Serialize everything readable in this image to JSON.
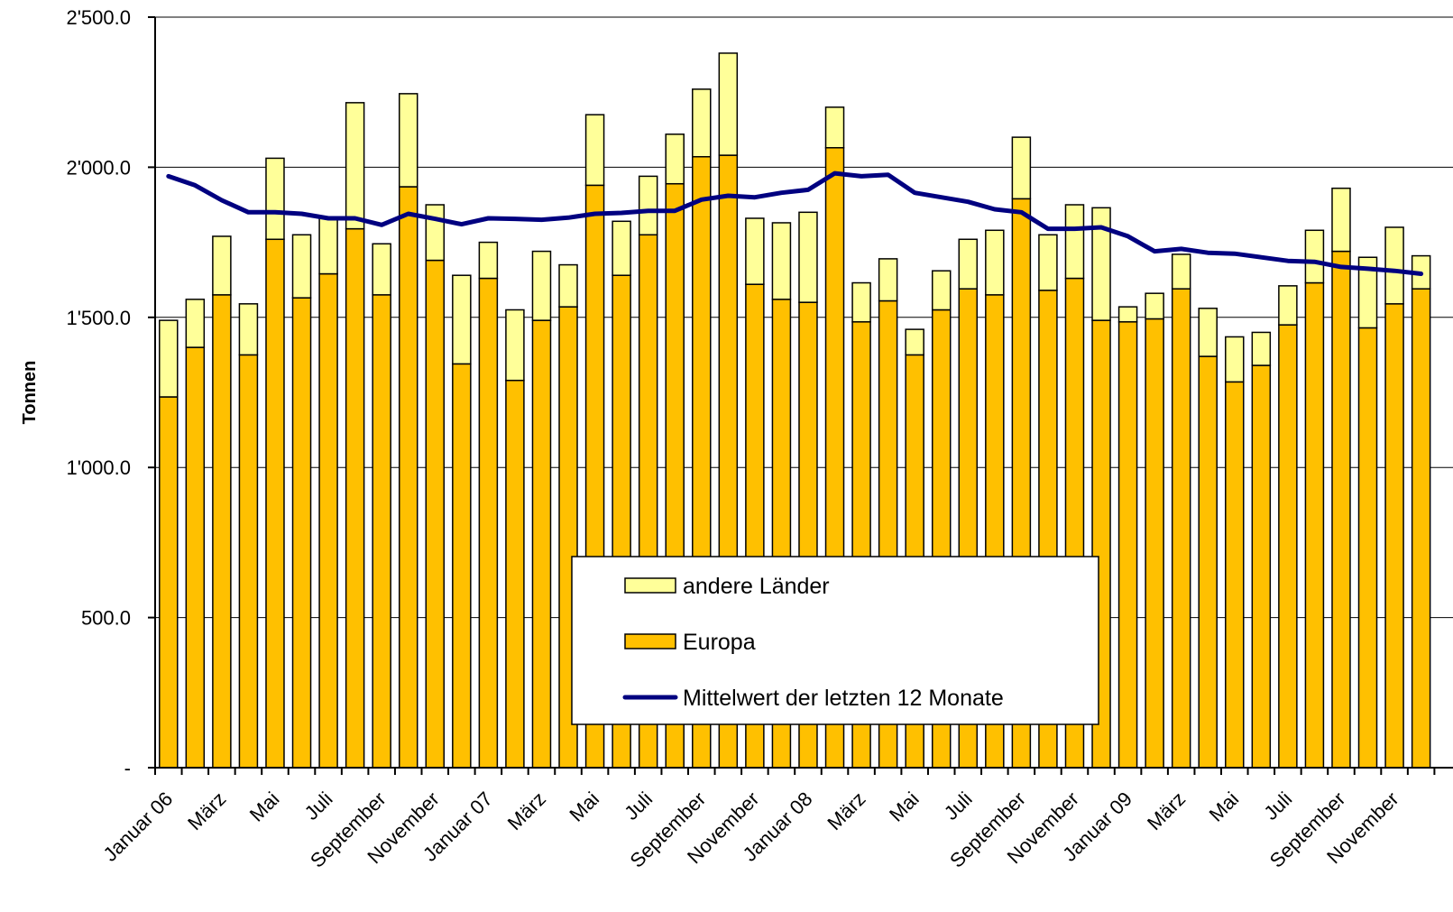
{
  "chart_data": {
    "type": "bar",
    "stacked": true,
    "ylabel": "Tonnen",
    "ylim": [
      0,
      2500
    ],
    "yticks": [
      {
        "value": 0,
        "label": "-"
      },
      {
        "value": 500,
        "label": "500.0"
      },
      {
        "value": 1000,
        "label": "1'000.0"
      },
      {
        "value": 1500,
        "label": "1'500.0"
      },
      {
        "value": 2000,
        "label": "2'000.0"
      },
      {
        "value": 2500,
        "label": "2'500.0"
      }
    ],
    "grid": true,
    "legend_position": "center-bottom",
    "x_labels": [
      {
        "index": 0,
        "label": "Januar 06"
      },
      {
        "index": 2,
        "label": "März"
      },
      {
        "index": 4,
        "label": "Mai"
      },
      {
        "index": 6,
        "label": "Juli"
      },
      {
        "index": 8,
        "label": "September"
      },
      {
        "index": 10,
        "label": "November"
      },
      {
        "index": 12,
        "label": "Januar 07"
      },
      {
        "index": 14,
        "label": "März"
      },
      {
        "index": 16,
        "label": "Mai"
      },
      {
        "index": 18,
        "label": "Juli"
      },
      {
        "index": 20,
        "label": "September"
      },
      {
        "index": 22,
        "label": "November"
      },
      {
        "index": 24,
        "label": "Januar 08"
      },
      {
        "index": 26,
        "label": "März"
      },
      {
        "index": 28,
        "label": "Mai"
      },
      {
        "index": 30,
        "label": "Juli"
      },
      {
        "index": 32,
        "label": "September"
      },
      {
        "index": 34,
        "label": "November"
      },
      {
        "index": 36,
        "label": "Januar 09"
      },
      {
        "index": 38,
        "label": "März"
      },
      {
        "index": 40,
        "label": "Mai"
      },
      {
        "index": 42,
        "label": "Juli"
      },
      {
        "index": 44,
        "label": "September"
      },
      {
        "index": 46,
        "label": "November"
      }
    ],
    "series": [
      {
        "name": "Europa",
        "kind": "bar",
        "color": "#FFC000",
        "values": [
          1235,
          1400,
          1575,
          1375,
          1760,
          1565,
          1645,
          1795,
          1575,
          1935,
          1690,
          1345,
          1630,
          1290,
          1490,
          1535,
          1940,
          1640,
          1775,
          1945,
          2035,
          2040,
          1610,
          1560,
          1550,
          2065,
          1485,
          1555,
          1375,
          1525,
          1595,
          1575,
          1895,
          1590,
          1630,
          1490,
          1485,
          1495,
          1595,
          1370,
          1285,
          1340,
          1475,
          1615,
          1720,
          1465,
          1545,
          1595
        ]
      },
      {
        "name": "andere Länder",
        "kind": "bar",
        "color": "#FFFF99",
        "values": [
          255,
          160,
          195,
          170,
          270,
          210,
          190,
          420,
          170,
          310,
          185,
          295,
          120,
          235,
          230,
          140,
          235,
          180,
          195,
          165,
          225,
          340,
          220,
          255,
          300,
          135,
          130,
          140,
          85,
          130,
          165,
          215,
          205,
          185,
          245,
          375,
          50,
          85,
          115,
          160,
          150,
          110,
          130,
          175,
          210,
          235,
          255,
          110
        ]
      },
      {
        "name": "Mittelwert der letzten 12 Monate",
        "kind": "line",
        "color": "#000080",
        "values": [
          1970,
          1940,
          1890,
          1850,
          1850,
          1845,
          1830,
          1830,
          1808,
          1845,
          1828,
          1810,
          1830,
          1828,
          1825,
          1832,
          1845,
          1848,
          1855,
          1855,
          1892,
          1905,
          1900,
          1915,
          1925,
          1980,
          1970,
          1975,
          1915,
          1900,
          1885,
          1860,
          1850,
          1795,
          1795,
          1800,
          1770,
          1720,
          1728,
          1715,
          1712,
          1700,
          1688,
          1685,
          1668,
          1662,
          1655,
          1645
        ]
      }
    ]
  }
}
